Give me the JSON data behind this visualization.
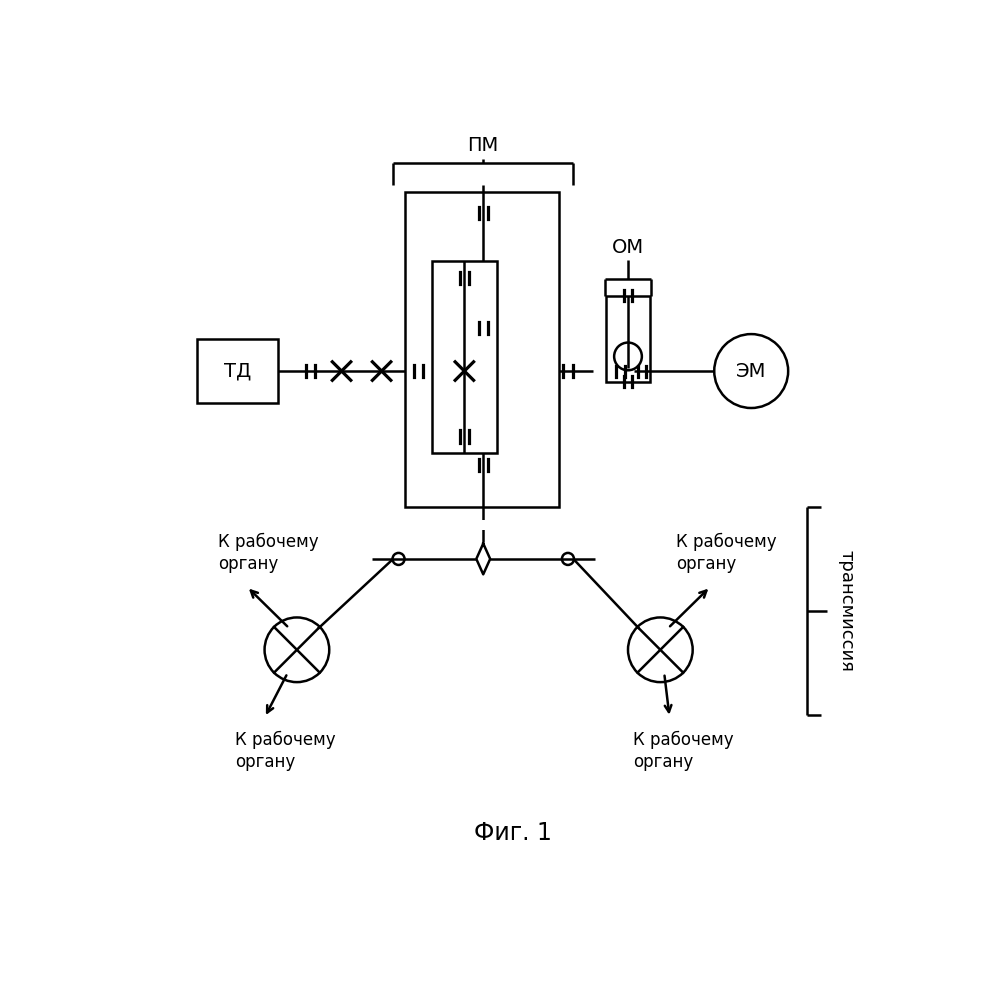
{
  "title": "Фиг. 1",
  "label_PM": "ПМ",
  "label_OM": "ОМ",
  "label_TD": "ТД",
  "label_EM": "ЭМ",
  "label_transmission": "трансмиссия",
  "label_k_rabochemu_organu": "К рабочему\nоргану",
  "bg_color": "#ffffff",
  "line_color": "#000000",
  "fontsize_labels": 14,
  "fontsize_title": 17,
  "fontsize_transmission": 13,
  "fontsize_small": 12
}
